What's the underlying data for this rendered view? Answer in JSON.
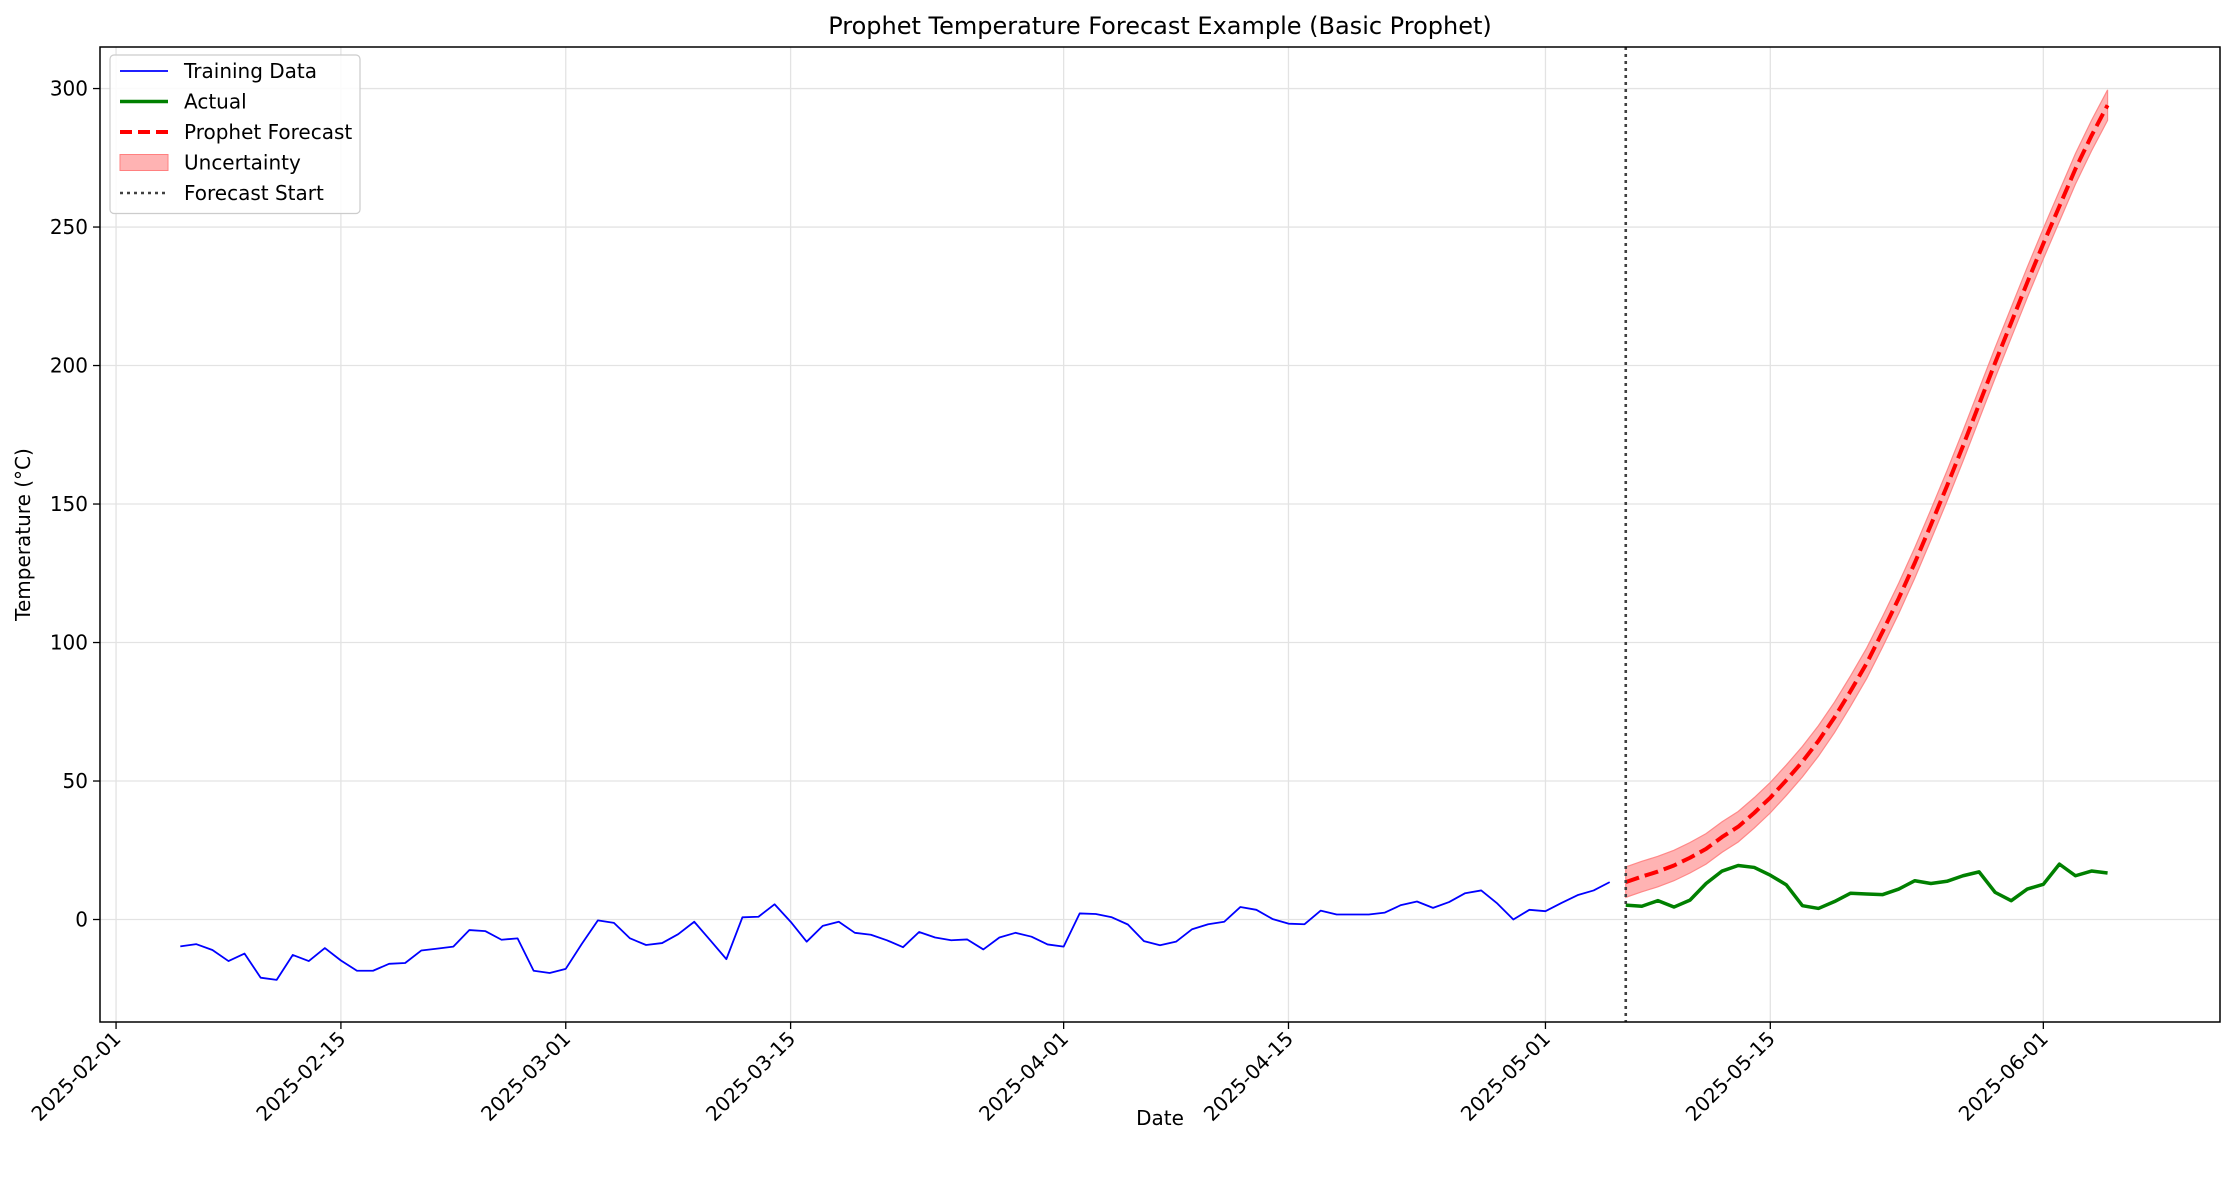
{
  "chart_data": {
    "type": "line",
    "title": "Prophet Temperature Forecast Example (Basic Prophet)",
    "xlabel": "Date",
    "ylabel": "Temperature (°C)",
    "x_ticks": [
      "2025-02-01",
      "2025-02-15",
      "2025-03-01",
      "2025-03-15",
      "2025-04-01",
      "2025-04-15",
      "2025-05-01",
      "2025-05-15",
      "2025-06-01"
    ],
    "y_ticks": [
      0,
      50,
      100,
      150,
      200,
      250,
      300
    ],
    "xlim": [
      "2025-01-31",
      "2025-06-12"
    ],
    "ylim": [
      -37,
      315
    ],
    "grid": true,
    "legend_position": "upper-left",
    "forecast_start": "2025-05-06",
    "series": [
      {
        "name": "Training Data",
        "kind": "line",
        "color": "#0000ff",
        "points": [
          [
            "2025-02-05",
            -9.7
          ],
          [
            "2025-02-06",
            -8.9
          ],
          [
            "2025-02-07",
            -11
          ],
          [
            "2025-02-08",
            -15
          ],
          [
            "2025-02-09",
            -12.3
          ],
          [
            "2025-02-10",
            -21
          ],
          [
            "2025-02-11",
            -21.8
          ],
          [
            "2025-02-12",
            -12.8
          ],
          [
            "2025-02-13",
            -15
          ],
          [
            "2025-02-14",
            -10.3
          ],
          [
            "2025-02-15",
            -14.8
          ],
          [
            "2025-02-16",
            -18.5
          ],
          [
            "2025-02-17",
            -18.5
          ],
          [
            "2025-02-18",
            -16
          ],
          [
            "2025-02-19",
            -15.7
          ],
          [
            "2025-02-20",
            -11.2
          ],
          [
            "2025-02-21",
            -10.5
          ],
          [
            "2025-02-22",
            -9.8
          ],
          [
            "2025-02-23",
            -3.8
          ],
          [
            "2025-02-24",
            -4.2
          ],
          [
            "2025-02-25",
            -7.3
          ],
          [
            "2025-02-26",
            -6.8
          ],
          [
            "2025-02-27",
            -18.5
          ],
          [
            "2025-02-28",
            -19.3
          ],
          [
            "2025-03-01",
            -17.8
          ],
          [
            "2025-03-02",
            -8.8
          ],
          [
            "2025-03-03",
            -0.3
          ],
          [
            "2025-03-04",
            -1.2
          ],
          [
            "2025-03-05",
            -6.8
          ],
          [
            "2025-03-06",
            -9.2
          ],
          [
            "2025-03-07",
            -8.5
          ],
          [
            "2025-03-08",
            -5.3
          ],
          [
            "2025-03-09",
            -0.8
          ],
          [
            "2025-03-10",
            -7.5
          ],
          [
            "2025-03-11",
            -14.3
          ],
          [
            "2025-03-12",
            0.8
          ],
          [
            "2025-03-13",
            1
          ],
          [
            "2025-03-14",
            5.5
          ],
          [
            "2025-03-15",
            -0.8
          ],
          [
            "2025-03-16",
            -8
          ],
          [
            "2025-03-17",
            -2.3
          ],
          [
            "2025-03-18",
            -0.8
          ],
          [
            "2025-03-19",
            -4.8
          ],
          [
            "2025-03-20",
            -5.5
          ],
          [
            "2025-03-21",
            -7.5
          ],
          [
            "2025-03-22",
            -10
          ],
          [
            "2025-03-23",
            -4.5
          ],
          [
            "2025-03-24",
            -6.5
          ],
          [
            "2025-03-25",
            -7.5
          ],
          [
            "2025-03-26",
            -7.2
          ],
          [
            "2025-03-27",
            -10.8
          ],
          [
            "2025-03-28",
            -6.5
          ],
          [
            "2025-03-29",
            -4.8
          ],
          [
            "2025-03-30",
            -6.2
          ],
          [
            "2025-03-31",
            -9
          ],
          [
            "2025-04-01",
            -9.8
          ],
          [
            "2025-04-02",
            2.2
          ],
          [
            "2025-04-03",
            2
          ],
          [
            "2025-04-04",
            0.8
          ],
          [
            "2025-04-05",
            -1.8
          ],
          [
            "2025-04-06",
            -7.8
          ],
          [
            "2025-04-07",
            -9.3
          ],
          [
            "2025-04-08",
            -8
          ],
          [
            "2025-04-09",
            -3.5
          ],
          [
            "2025-04-10",
            -1.7
          ],
          [
            "2025-04-11",
            -0.8
          ],
          [
            "2025-04-12",
            4.5
          ],
          [
            "2025-04-13",
            3.5
          ],
          [
            "2025-04-14",
            0.2
          ],
          [
            "2025-04-15",
            -1.5
          ],
          [
            "2025-04-16",
            -1.7
          ],
          [
            "2025-04-17",
            3.2
          ],
          [
            "2025-04-18",
            1.8
          ],
          [
            "2025-04-19",
            1.8
          ],
          [
            "2025-04-20",
            1.8
          ],
          [
            "2025-04-21",
            2.5
          ],
          [
            "2025-04-22",
            5.2
          ],
          [
            "2025-04-23",
            6.5
          ],
          [
            "2025-04-24",
            4.2
          ],
          [
            "2025-04-25",
            6.3
          ],
          [
            "2025-04-26",
            9.5
          ],
          [
            "2025-04-27",
            10.5
          ],
          [
            "2025-04-28",
            5.8
          ],
          [
            "2025-04-29",
            0
          ],
          [
            "2025-04-30",
            3.5
          ],
          [
            "2025-05-01",
            3
          ],
          [
            "2025-05-02",
            6
          ],
          [
            "2025-05-03",
            8.8
          ],
          [
            "2025-05-04",
            10.5
          ],
          [
            "2025-05-05",
            13.5
          ]
        ]
      },
      {
        "name": "Actual",
        "kind": "line",
        "color": "#008000",
        "points": [
          [
            "2025-05-06",
            5.2
          ],
          [
            "2025-05-07",
            4.8
          ],
          [
            "2025-05-08",
            6.8
          ],
          [
            "2025-05-09",
            4.5
          ],
          [
            "2025-05-10",
            7
          ],
          [
            "2025-05-11",
            13
          ],
          [
            "2025-05-12",
            17.5
          ],
          [
            "2025-05-13",
            19.5
          ],
          [
            "2025-05-14",
            18.8
          ],
          [
            "2025-05-15",
            16
          ],
          [
            "2025-05-16",
            12.5
          ],
          [
            "2025-05-17",
            5
          ],
          [
            "2025-05-18",
            4
          ],
          [
            "2025-05-19",
            6.5
          ],
          [
            "2025-05-20",
            9.5
          ],
          [
            "2025-05-21",
            9.2
          ],
          [
            "2025-05-22",
            9
          ],
          [
            "2025-05-23",
            11
          ],
          [
            "2025-05-24",
            14
          ],
          [
            "2025-05-25",
            13
          ],
          [
            "2025-05-26",
            13.8
          ],
          [
            "2025-05-27",
            15.8
          ],
          [
            "2025-05-28",
            17.2
          ],
          [
            "2025-05-29",
            9.8
          ],
          [
            "2025-05-30",
            6.8
          ],
          [
            "2025-05-31",
            11
          ],
          [
            "2025-06-01",
            12.7
          ],
          [
            "2025-06-02",
            20
          ],
          [
            "2025-06-03",
            15.8
          ],
          [
            "2025-06-04",
            17.5
          ],
          [
            "2025-06-05",
            16.8
          ]
        ]
      },
      {
        "name": "Prophet Forecast",
        "kind": "dashed-line",
        "color": "#ff0000",
        "points": [
          [
            "2025-05-06",
            13.5
          ],
          [
            "2025-05-07",
            15.5
          ],
          [
            "2025-05-08",
            17.3
          ],
          [
            "2025-05-09",
            19.5
          ],
          [
            "2025-05-10",
            22.3
          ],
          [
            "2025-05-11",
            25.5
          ],
          [
            "2025-05-12",
            29.8
          ],
          [
            "2025-05-13",
            33.5
          ],
          [
            "2025-05-14",
            38.5
          ],
          [
            "2025-05-15",
            44
          ],
          [
            "2025-05-16",
            50.3
          ],
          [
            "2025-05-17",
            57
          ],
          [
            "2025-05-18",
            64.5
          ],
          [
            "2025-05-19",
            73
          ],
          [
            "2025-05-20",
            82.5
          ],
          [
            "2025-05-21",
            92.5
          ],
          [
            "2025-05-22",
            104
          ],
          [
            "2025-05-23",
            116
          ],
          [
            "2025-05-24",
            128.8
          ],
          [
            "2025-05-25",
            142.5
          ],
          [
            "2025-05-26",
            156.5
          ],
          [
            "2025-05-27",
            171
          ],
          [
            "2025-05-28",
            186
          ],
          [
            "2025-05-29",
            201
          ],
          [
            "2025-05-30",
            215.5
          ],
          [
            "2025-05-31",
            230
          ],
          [
            "2025-06-01",
            244
          ],
          [
            "2025-06-02",
            257.5
          ],
          [
            "2025-06-03",
            271
          ],
          [
            "2025-06-04",
            283
          ],
          [
            "2025-06-05",
            294
          ]
        ]
      },
      {
        "name": "Uncertainty",
        "kind": "band",
        "color": "#ff8080",
        "half_width": 5.5
      },
      {
        "name": "Forecast Start",
        "kind": "vline",
        "color": "#404040"
      }
    ]
  }
}
